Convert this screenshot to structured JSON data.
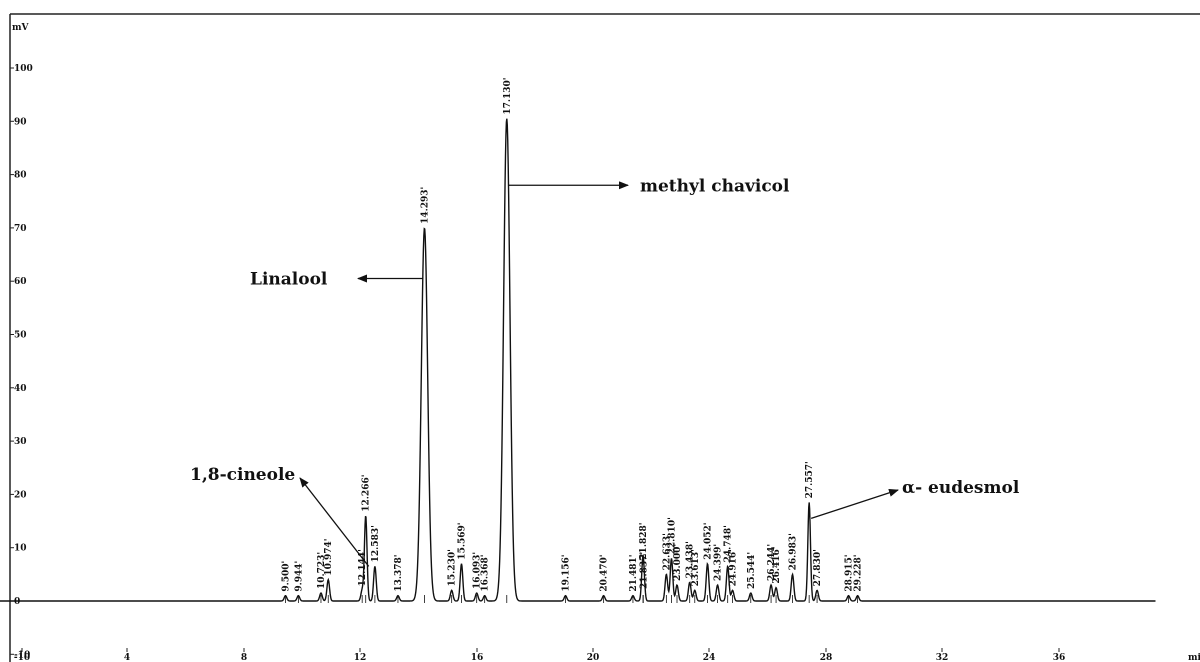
{
  "chart_data": {
    "type": "line",
    "title": "",
    "xlabel": "",
    "ylabel": "",
    "y_unit": "mV",
    "x_unit": "mi",
    "xlim": [
      -10,
      40
    ],
    "ylim": [
      -10,
      100
    ],
    "x_ticks": [
      "-10",
      "4",
      "8",
      "12",
      "16",
      "20",
      "24",
      "28",
      "32",
      "36"
    ],
    "y_ticks": [
      "-10",
      "0",
      "10",
      "20",
      "30",
      "40",
      "50",
      "60",
      "70",
      "80",
      "90",
      "100"
    ],
    "grid": false,
    "peaks": [
      {
        "rt": 9.5,
        "height": 1.0,
        "label": "9.500'"
      },
      {
        "rt": 9.944,
        "height": 1.0,
        "label": "9.944'"
      },
      {
        "rt": 10.723,
        "height": 1.5,
        "label": "10.723'"
      },
      {
        "rt": 10.974,
        "height": 4.0,
        "label": "10.974'"
      },
      {
        "rt": 12.144,
        "height": 2.0,
        "label": "12.144'"
      },
      {
        "rt": 12.266,
        "height": 16.0,
        "label": "12.266'"
      },
      {
        "rt": 12.583,
        "height": 6.5,
        "label": "12.583'"
      },
      {
        "rt": 13.378,
        "height": 1.0,
        "label": "13.378'"
      },
      {
        "rt": 14.293,
        "height": 70.0,
        "label": "14.293'"
      },
      {
        "rt": 15.23,
        "height": 2.0,
        "label": "15.230'"
      },
      {
        "rt": 15.569,
        "height": 7.0,
        "label": "15.569'"
      },
      {
        "rt": 16.093,
        "height": 1.5,
        "label": "16.093'"
      },
      {
        "rt": 16.368,
        "height": 1.0,
        "label": "16.368'"
      },
      {
        "rt": 17.13,
        "height": 90.5,
        "label": "17.130'"
      },
      {
        "rt": 19.156,
        "height": 1.0,
        "label": "19.156'"
      },
      {
        "rt": 20.47,
        "height": 1.0,
        "label": "20.470'"
      },
      {
        "rt": 21.481,
        "height": 1.0,
        "label": "21.481'"
      },
      {
        "rt": 21.837,
        "height": 1.5,
        "label": "21.837'"
      },
      {
        "rt": 21.828,
        "height": 7.0,
        "label": "21.828'"
      },
      {
        "rt": 22.633,
        "height": 5.0,
        "label": "22.633'"
      },
      {
        "rt": 22.81,
        "height": 8.0,
        "label": "22.810'"
      },
      {
        "rt": 23.0,
        "height": 3.0,
        "label": "23.000'"
      },
      {
        "rt": 23.438,
        "height": 3.5,
        "label": "23.438'"
      },
      {
        "rt": 23.613,
        "height": 2.0,
        "label": "23.613'"
      },
      {
        "rt": 24.052,
        "height": 7.0,
        "label": "24.052'"
      },
      {
        "rt": 24.399,
        "height": 3.0,
        "label": "24.399'"
      },
      {
        "rt": 24.916,
        "height": 2.0,
        "label": "24.916'"
      },
      {
        "rt": 24.748,
        "height": 6.5,
        "label": "24.748'"
      },
      {
        "rt": 25.544,
        "height": 1.5,
        "label": "25.544'"
      },
      {
        "rt": 26.244,
        "height": 3.0,
        "label": "26.244'"
      },
      {
        "rt": 26.416,
        "height": 2.5,
        "label": "26.416'"
      },
      {
        "rt": 26.983,
        "height": 5.0,
        "label": "26.983'"
      },
      {
        "rt": 27.557,
        "height": 18.5,
        "label": "27.557'"
      },
      {
        "rt": 27.83,
        "height": 2.0,
        "label": "27.830'"
      },
      {
        "rt": 28.915,
        "height": 1.0,
        "label": "28.915'"
      },
      {
        "rt": 29.228,
        "height": 1.0,
        "label": "29.228'"
      }
    ],
    "annotations": [
      {
        "text": "1,8-cineole",
        "target_rt": 12.266,
        "target_y": 6.5,
        "text_rt": 7.5,
        "text_y": 22.5,
        "arrow": "to-text"
      },
      {
        "text": "Linalool",
        "target_rt": 14.293,
        "target_y": 60.5,
        "text_rt": 8.0,
        "text_y": 60.5,
        "arrow": "to-text"
      },
      {
        "text": "methyl chavicol",
        "target_rt": 17.13,
        "target_y": 78.0,
        "text_rt": 22.5,
        "text_y": 78.0,
        "arrow": "to-text"
      },
      {
        "text": "α- eudesmol",
        "target_rt": 27.557,
        "target_y": 15.5,
        "text_rt": 30.5,
        "text_y": 20.5,
        "arrow": "to-text"
      }
    ]
  }
}
